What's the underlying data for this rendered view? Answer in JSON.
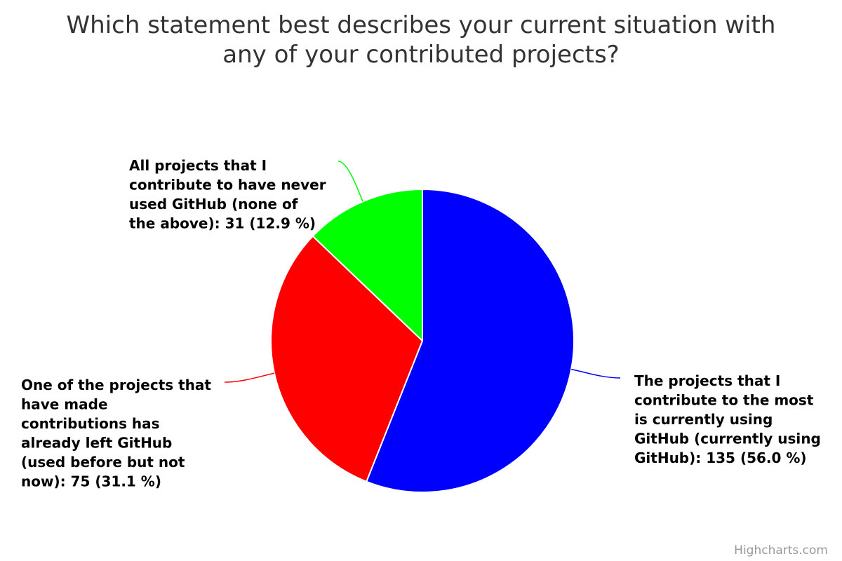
{
  "chart_data": {
    "type": "pie",
    "title": "Which statement best describes your current situation with any of your contributed projects?",
    "title_lines": [
      "Which statement best describes your current situation with",
      "any of your contributed projects?"
    ],
    "slices": [
      {
        "name": "The projects that I contribute to the most is currently using GitHub (currently using GitHub)",
        "value": 135,
        "percent": 56.0,
        "color": "#0000ff",
        "label_lines": [
          "The projects that I",
          "contribute to the most",
          "is currently using",
          "GitHub (currently using",
          "GitHub): 135 (56.0 %)"
        ]
      },
      {
        "name": "One of the projects that have made contributions has already left GitHub (used before but not now)",
        "value": 75,
        "percent": 31.1,
        "color": "#ff0000",
        "label_lines": [
          "One of the projects that",
          "have made",
          "contributions has",
          "already left GitHub",
          "(used before but not",
          "now): 75 (31.1 %)"
        ]
      },
      {
        "name": "All projects that I contribute to have never used GitHub (none of the above)",
        "value": 31,
        "percent": 12.9,
        "color": "#00ff00",
        "label_lines": [
          "All projects that I",
          "contribute to have never",
          "used GitHub (none of",
          "the above): 31 (12.9 %)"
        ]
      }
    ]
  },
  "credits": "Highcharts.com"
}
